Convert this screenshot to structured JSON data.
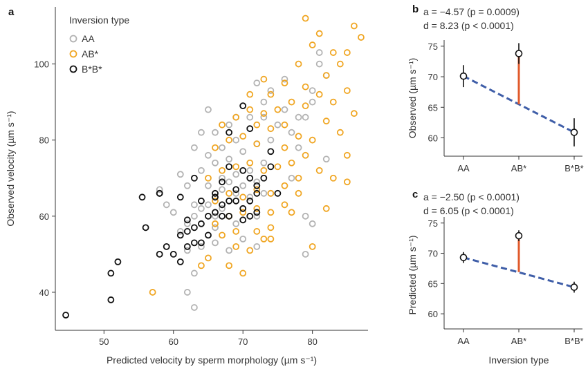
{
  "colors": {
    "AA": "#b3b3b3",
    "AB": "#f0a623",
    "BB": "#111111",
    "fit": "#3f5ea8",
    "effect": "#e05a2b"
  },
  "chart_data": [
    {
      "panel": "a",
      "type": "scatter",
      "xlabel": "Predicted velocity by sperm morphology (µm s⁻¹)",
      "ylabel": "Observed velocity (µm s⁻¹)",
      "xlim": [
        43,
        88
      ],
      "ylim": [
        30,
        115
      ],
      "xticks": [
        50,
        60,
        70,
        80
      ],
      "yticks": [
        40,
        60,
        80,
        100
      ],
      "legend_title": "Inversion type",
      "legend_position": "top-left",
      "series": [
        {
          "name": "AA",
          "points": [
            [
              62,
              40
            ],
            [
              63,
              36
            ],
            [
              63,
              45
            ],
            [
              62,
              51
            ],
            [
              64,
              52
            ],
            [
              66,
              53
            ],
            [
              68,
              51
            ],
            [
              70,
              54
            ],
            [
              72,
              52
            ],
            [
              61,
              56
            ],
            [
              62,
              58
            ],
            [
              63,
              60
            ],
            [
              63,
              63
            ],
            [
              64,
              62
            ],
            [
              65,
              63
            ],
            [
              66,
              57
            ],
            [
              66,
              60
            ],
            [
              66,
              65
            ],
            [
              67,
              62
            ],
            [
              67,
              67
            ],
            [
              68,
              64
            ],
            [
              68,
              69
            ],
            [
              69,
              58
            ],
            [
              69,
              66
            ],
            [
              69,
              71
            ],
            [
              70,
              62
            ],
            [
              70,
              68
            ],
            [
              71,
              65
            ],
            [
              71,
              72
            ],
            [
              72,
              60
            ],
            [
              72,
              69
            ],
            [
              73,
              66
            ],
            [
              73,
              74
            ],
            [
              61,
              71
            ],
            [
              62,
              68
            ],
            [
              64,
              72
            ],
            [
              65,
              76
            ],
            [
              66,
              74
            ],
            [
              67,
              70
            ],
            [
              67,
              78
            ],
            [
              68,
              75
            ],
            [
              69,
              80
            ],
            [
              70,
              77
            ],
            [
              71,
              83
            ],
            [
              72,
              79
            ],
            [
              73,
              86
            ],
            [
              74,
              80
            ],
            [
              75,
              84
            ],
            [
              76,
              88
            ],
            [
              77,
              82
            ],
            [
              78,
              78
            ],
            [
              79,
              86
            ],
            [
              80,
              90
            ],
            [
              80,
              93
            ],
            [
              81,
              100
            ],
            [
              81,
              103
            ],
            [
              82,
              97
            ],
            [
              79,
              60
            ],
            [
              80,
              58
            ],
            [
              79,
              50
            ],
            [
              82,
              75
            ],
            [
              65,
              88
            ],
            [
              68,
              84
            ],
            [
              70,
              89
            ],
            [
              72,
              95
            ],
            [
              71,
              86
            ],
            [
              74,
              93
            ],
            [
              76,
              96
            ],
            [
              78,
              86
            ],
            [
              77,
              70
            ],
            [
              74,
              66
            ],
            [
              60,
              61
            ],
            [
              59,
              63
            ],
            [
              58,
              67
            ],
            [
              65,
              68
            ],
            [
              63,
              78
            ],
            [
              64,
              82
            ],
            [
              66,
              82
            ],
            [
              69,
              86
            ],
            [
              73,
              90
            ]
          ]
        },
        {
          "name": "AB*",
          "points": [
            [
              57,
              40
            ],
            [
              64,
              47
            ],
            [
              65,
              49
            ],
            [
              68,
              47
            ],
            [
              70,
              45
            ],
            [
              69,
              52
            ],
            [
              71,
              51
            ],
            [
              67,
              55
            ],
            [
              69,
              56
            ],
            [
              72,
              56
            ],
            [
              73,
              54
            ],
            [
              74,
              57
            ],
            [
              66,
              58
            ],
            [
              68,
              60
            ],
            [
              70,
              61
            ],
            [
              72,
              62
            ],
            [
              74,
              61
            ],
            [
              76,
              63
            ],
            [
              66,
              64
            ],
            [
              68,
              66
            ],
            [
              70,
              65
            ],
            [
              72,
              67
            ],
            [
              74,
              66
            ],
            [
              76,
              68
            ],
            [
              78,
              70
            ],
            [
              65,
              70
            ],
            [
              67,
              72
            ],
            [
              69,
              73
            ],
            [
              71,
              74
            ],
            [
              73,
              72
            ],
            [
              75,
              73
            ],
            [
              77,
              74
            ],
            [
              79,
              76
            ],
            [
              81,
              72
            ],
            [
              66,
              78
            ],
            [
              68,
              80
            ],
            [
              70,
              81
            ],
            [
              72,
              79
            ],
            [
              74,
              83
            ],
            [
              76,
              84
            ],
            [
              78,
              81
            ],
            [
              80,
              80
            ],
            [
              82,
              85
            ],
            [
              67,
              84
            ],
            [
              69,
              86
            ],
            [
              71,
              88
            ],
            [
              73,
              87
            ],
            [
              75,
              88
            ],
            [
              77,
              90
            ],
            [
              79,
              89
            ],
            [
              81,
              92
            ],
            [
              83,
              90
            ],
            [
              74,
              92
            ],
            [
              76,
              95
            ],
            [
              79,
              94
            ],
            [
              82,
              97
            ],
            [
              84,
              100
            ],
            [
              85,
              103
            ],
            [
              86,
              110
            ],
            [
              87,
              107
            ],
            [
              80,
              105
            ],
            [
              79,
              112
            ],
            [
              81,
              108
            ],
            [
              83,
              103
            ],
            [
              85,
              93
            ],
            [
              86,
              87
            ],
            [
              84,
              82
            ],
            [
              85,
              76
            ],
            [
              85,
              69
            ],
            [
              80,
              52
            ],
            [
              74,
              54
            ],
            [
              77,
              61
            ],
            [
              78,
              66
            ],
            [
              82,
              62
            ],
            [
              83,
              70
            ],
            [
              76,
              78
            ],
            [
              72,
              84
            ],
            [
              73,
              96
            ],
            [
              71,
              92
            ],
            [
              78,
              100
            ]
          ]
        },
        {
          "name": "B*B*",
          "points": [
            [
              44.5,
              34
            ],
            [
              51,
              38
            ],
            [
              51,
              45
            ],
            [
              52,
              48
            ],
            [
              56,
              57
            ],
            [
              55.5,
              65
            ],
            [
              58,
              66
            ],
            [
              58,
              66
            ],
            [
              58,
              50
            ],
            [
              59,
              52
            ],
            [
              61,
              48
            ],
            [
              61,
              55
            ],
            [
              62,
              56
            ],
            [
              63,
              53
            ],
            [
              63,
              57
            ],
            [
              64,
              53
            ],
            [
              64,
              58
            ],
            [
              65,
              55
            ],
            [
              65,
              60
            ],
            [
              66,
              61
            ],
            [
              66,
              65
            ],
            [
              67,
              60
            ],
            [
              67,
              63
            ],
            [
              67,
              69
            ],
            [
              68,
              60
            ],
            [
              68,
              64
            ],
            [
              68,
              73
            ],
            [
              69,
              64
            ],
            [
              69,
              67
            ],
            [
              70,
              59
            ],
            [
              70,
              62
            ],
            [
              70,
              72
            ],
            [
              70,
              89
            ],
            [
              71,
              60
            ],
            [
              71,
              64
            ],
            [
              71,
              70
            ],
            [
              71,
              83
            ],
            [
              72,
              61
            ],
            [
              72,
              66
            ],
            [
              72,
              68
            ],
            [
              73,
              70
            ],
            [
              74,
              73
            ],
            [
              74,
              77
            ],
            [
              75,
              66
            ],
            [
              68,
              82
            ],
            [
              66,
              66
            ],
            [
              62,
              59
            ],
            [
              63,
              70
            ],
            [
              64,
              64
            ],
            [
              61,
              65
            ],
            [
              60,
              50
            ],
            [
              62,
              52
            ]
          ]
        }
      ]
    },
    {
      "panel": "b",
      "type": "line",
      "categories": [
        "AA",
        "AB*",
        "B*B*"
      ],
      "ylabel": "Observed (µm s⁻¹)",
      "ylim": [
        57,
        76
      ],
      "yticks": [
        60,
        65,
        70,
        75
      ],
      "means": [
        70.1,
        73.8,
        60.9
      ],
      "errors": [
        1.8,
        1.7,
        2.3
      ],
      "additive_fit": [
        70.1,
        65.5,
        60.9
      ],
      "dominance_effect": 8.23,
      "stats_a": "a = −4.57 (p = 0.0009)",
      "stats_d": "d = 8.23 (p < 0.0001)"
    },
    {
      "panel": "c",
      "type": "line",
      "categories": [
        "AA",
        "AB*",
        "B*B*"
      ],
      "xlabel": "Inversion type",
      "ylabel": "Predicted (µm s⁻¹)",
      "ylim": [
        57.5,
        76
      ],
      "yticks": [
        60,
        65,
        70,
        75
      ],
      "means": [
        69.3,
        72.9,
        64.4
      ],
      "errors": [
        0.9,
        0.9,
        0.9
      ],
      "additive_fit": [
        69.3,
        66.9,
        64.4
      ],
      "dominance_effect": 6.05,
      "stats_a": "a = −2.50 (p < 0.0001)",
      "stats_d": "d = 6.05 (p < 0.0001)"
    }
  ]
}
